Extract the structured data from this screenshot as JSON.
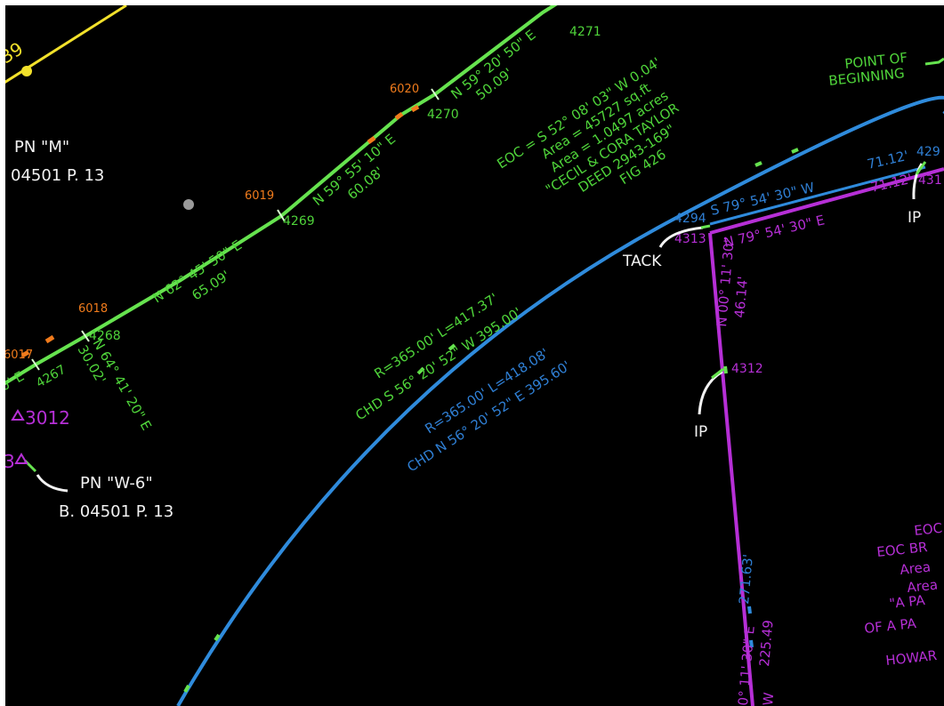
{
  "colors": {
    "background": "#000000",
    "frame": "#ffffff",
    "green_line": "#66e34f",
    "green_text": "#4fd43a",
    "yellow": "#f2e12b",
    "orange": "#f07b1c",
    "blue": "#2f8bdc",
    "blue_text": "#2f7fd4",
    "purple": "#b62fd6",
    "white": "#f2f2f2",
    "grey_dot": "#9a9a9a"
  },
  "top_left": {
    "point": "39"
  },
  "pn_m": {
    "line1": "PN  \"M\"",
    "line2": "04501 P. 13"
  },
  "pn_w6": {
    "line1": "PN  \"W-6\"",
    "line2": "B. 04501 P. 13"
  },
  "pins": {
    "p3012": "3012",
    "p3_partial": "3"
  },
  "green_points": {
    "p4267": "4267",
    "p4268": "4268",
    "p4269": "4269",
    "p4270": "4270",
    "p4271": "4271"
  },
  "orange_points": {
    "p6017": "6017",
    "p6018": "6018",
    "p6019": "6019",
    "p6020": "6020"
  },
  "green_bearings": {
    "seg_4267_4268_bearing": "N 64° 41' 20\" E",
    "seg_4267_4268_dist": "30.02'",
    "seg_4268_4269_bearing": "N 62° 45' 50\" E",
    "seg_4268_4269_dist": "65.09'",
    "seg_4269_4270_bearing": "N 59° 55' 10\" E",
    "seg_4269_4270_dist": "60.08'",
    "seg_4270_4271_bearing": "N 59° 20' 50\" E",
    "seg_4270_4271_dist": "50.09'",
    "left_edge_fragment": "0' E"
  },
  "parcel_block": {
    "line1": "EOC = S 52° 08' 03\" W 0.04'",
    "line2": "Area = 45727 sq.ft",
    "line3": "Area = 1.0497 acres",
    "line4": "\"CECIL & CORA TAYLOR",
    "line5": "DEED 2943-169\"",
    "line6": "FIG 426"
  },
  "point_of_beginning": {
    "line1": "POINT OF",
    "line2": "BEGINNING"
  },
  "curves": {
    "green_curve": "R=365.00'  L=417.37'",
    "green_chord": "CHD  S 56° 20' 52\" W  395.00'",
    "blue_curve": "R=365.00'  L=418.08'",
    "blue_chord": "CHD  N 56° 20' 52\" E  395.60'"
  },
  "east_lines": {
    "blue_label_point": "4294",
    "blue_bearing": "S 79° 54' 30\" W",
    "blue_dist": "71.12'",
    "blue_end_point": "429",
    "purple_label_point": "4313",
    "purple_bearing": "N 79° 54' 30\" E",
    "purple_dist": "71.12'",
    "purple_end_point": "431"
  },
  "south_line": {
    "bearing": "N 00° 11' 30\"",
    "dist": "46.14'",
    "point": "4312",
    "lower_dist_blue": "271.63'",
    "lower_bearing_purple": "0° 11' 30\" E",
    "lower_dist_purple": "225.49",
    "lower_w": "W"
  },
  "white_labels": {
    "tack": "TACK",
    "ip1": "IP",
    "ip2": "IP"
  },
  "right_block": {
    "line1": "EOC",
    "line2": "EOC BR",
    "line3": "Area",
    "line4": "Area",
    "line5": "\"A PA",
    "line6": "OF A PA",
    "line7": "HOWAR"
  }
}
